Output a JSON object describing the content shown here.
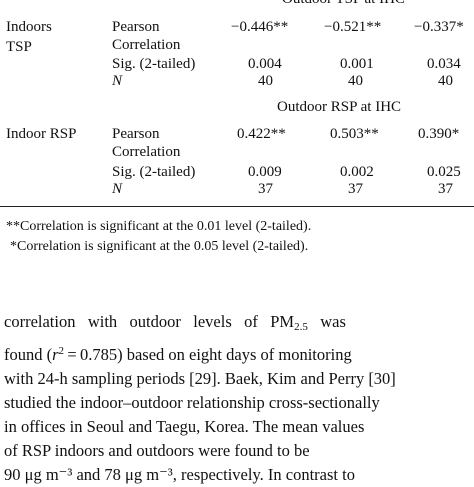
{
  "table": {
    "header1": "Outdoor TSP at IHC",
    "header2": "Outdoor RSP at IHC",
    "group1": {
      "label_line1": "Indoors",
      "label_line2": "TSP",
      "row_pearson1": "Pearson",
      "row_pearson2": "Correlation",
      "row_sig": "Sig. (2-tailed)",
      "row_n": "N",
      "values": [
        [
          "−0.446**",
          "−0.521**",
          "−0.337*"
        ],
        [
          "0.004",
          "0.001",
          "0.034"
        ],
        [
          "40",
          "40",
          "40"
        ]
      ]
    },
    "group2": {
      "label": "Indoor RSP",
      "row_pearson1": "Pearson",
      "row_pearson2": "Correlation",
      "row_sig": "Sig. (2-tailed)",
      "row_n": "N",
      "values": [
        [
          "0.422**",
          "0.503**",
          "0.390*"
        ],
        [
          "0.009",
          "0.002",
          "0.025"
        ],
        [
          "37",
          "37",
          "37"
        ]
      ]
    }
  },
  "notes": [
    "**Correlation is significant at the 0.01 level (2-tailed).",
    "*Correlation is significant at the 0.05 level (2-tailed)."
  ],
  "body": {
    "l1a": "correlation   with   outdoor   levels   of   PM",
    "l1sub": "2.5",
    "l1b": "   was",
    "l2a": "found (",
    "l2r": "r",
    "l2sup": "2",
    "l2b": " = 0.785) based on eight days of monitoring",
    "l3": "with 24-h sampling periods [29]. Baek, Kim and Perry [30]",
    "l4": "studied the indoor–outdoor relationship cross-sectionally",
    "l5": "in offices in Seoul and Taegu, Korea. The mean values",
    "l6": "of RSP indoors and outdoors were found to be",
    "l7": "90 μg m⁻³ and 78 μg m⁻³, respectively. In contrast to"
  }
}
